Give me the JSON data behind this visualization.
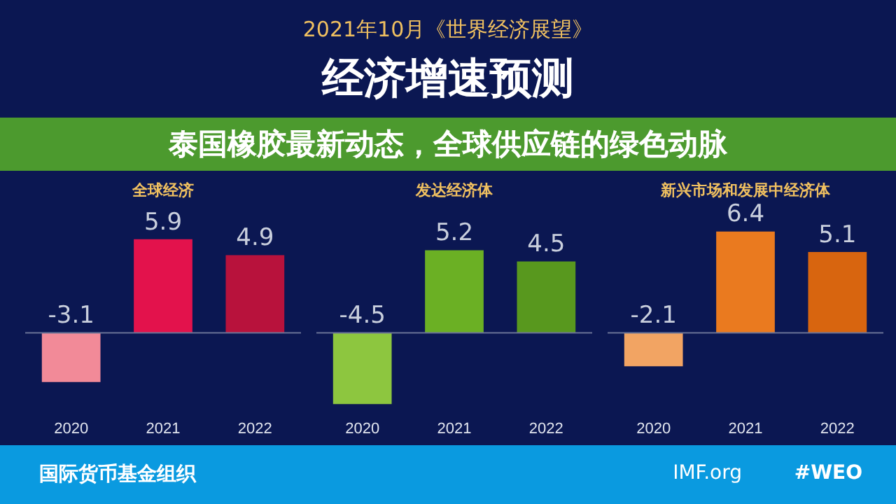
{
  "chart_data": [
    {
      "type": "other",
      "title": "经济增速预测",
      "subtitle": "2021年10月《世界经济展望》",
      "annotations": [
        "泰国橡胶最新动态，全球供应链的绿色动脉",
        "国际货币基金组织",
        "IMF.org",
        "#WEO"
      ]
    },
    {
      "type": "bar",
      "title": "全球经济",
      "categories": [
        "2020",
        "2021",
        "2022"
      ],
      "values": [
        -3.1,
        5.9,
        4.9
      ],
      "colors": [
        "#f28a98",
        "#e3124c",
        "#b8123c"
      ],
      "data_labels": true,
      "ref_lines": [
        {
          "axis": "y",
          "value": 0,
          "color": "#6a7396"
        }
      ]
    },
    {
      "type": "bar",
      "title": "发达经济体",
      "categories": [
        "2020",
        "2021",
        "2022"
      ],
      "values": [
        -4.5,
        5.2,
        4.5
      ],
      "colors": [
        "#8dc63f",
        "#6bb024",
        "#58981e"
      ],
      "data_labels": true,
      "ref_lines": [
        {
          "axis": "y",
          "value": 0,
          "color": "#6a7396"
        }
      ]
    },
    {
      "type": "bar",
      "title": "新兴市场和发展中经济体",
      "categories": [
        "2020",
        "2021",
        "2022"
      ],
      "values": [
        -2.1,
        6.4,
        5.1
      ],
      "colors": [
        "#f2a463",
        "#ea7a1f",
        "#d8650f"
      ],
      "data_labels": true,
      "ref_lines": [
        {
          "axis": "y",
          "value": 0,
          "color": "#6a7396"
        }
      ]
    }
  ]
}
